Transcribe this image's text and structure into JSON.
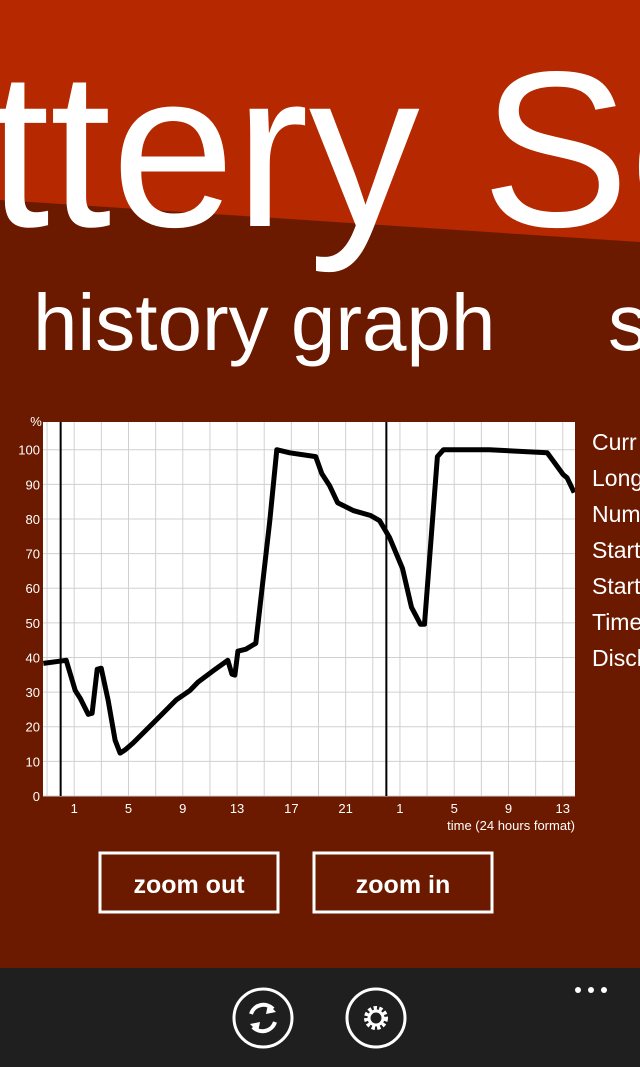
{
  "header": {
    "title": "ttery Se"
  },
  "pivot": {
    "current": "history graph",
    "next": "s"
  },
  "chart_data": {
    "type": "line",
    "y_axis_label": "%",
    "x_axis_label": "time (24 hours format)",
    "x": [
      -1.28,
      0.41,
      1.07,
      1.44,
      2.03,
      2.32,
      2.69,
      2.99,
      3.5,
      4.01,
      4.38,
      4.75,
      5.34,
      7.18,
      8.5,
      9.53,
      10.12,
      11.29,
      12.32,
      12.62,
      12.84,
      13.06,
      13.65,
      14.38,
      15.41,
      15.93,
      16.88,
      18.79,
      19.24,
      19.82,
      20.41,
      21.59,
      22.84,
      23.5,
      24.24,
      25.19,
      25.85,
      26.51,
      26.81,
      27.76,
      28.21,
      31.59,
      35.85,
      36.44,
      37.03,
      37.32,
      37.84
    ],
    "values": [
      38.3,
      39.2,
      30.5,
      28.2,
      23.6,
      23.9,
      36.6,
      36.9,
      27.7,
      16.1,
      12.4,
      13.3,
      15.3,
      22.5,
      27.7,
      30.5,
      32.9,
      36.3,
      39.2,
      35.2,
      34.9,
      41.8,
      42.4,
      44.1,
      79.5,
      100,
      99.1,
      98,
      93.1,
      89.6,
      84.7,
      82.4,
      81,
      79.5,
      74.6,
      65.7,
      54.5,
      49.6,
      49.6,
      98,
      100,
      100,
      99.1,
      96,
      92.8,
      91.9,
      87.6
    ],
    "color": "#000000",
    "xlim": [
      -1.3,
      37.9
    ],
    "ylim": [
      0,
      108
    ],
    "yticks": [
      0,
      10,
      20,
      30,
      40,
      50,
      60,
      70,
      80,
      90,
      100
    ],
    "xticks": [
      1,
      5,
      9,
      13,
      17,
      21,
      {
        "value": 25,
        "label": "1"
      },
      {
        "value": 29,
        "label": "5"
      },
      {
        "value": 33,
        "label": "9"
      },
      {
        "value": 37,
        "label": "13"
      }
    ],
    "x_minor_ticks": [
      -1,
      3,
      7,
      11,
      15,
      19,
      23,
      27,
      31,
      35
    ],
    "day_markers": [
      0,
      24
    ],
    "grid": true
  },
  "side_labels": [
    "Curr",
    "Long",
    "Num",
    "Start",
    "Start",
    "Time",
    "Disch"
  ],
  "buttons": [
    "zoom out",
    "zoom in"
  ]
}
